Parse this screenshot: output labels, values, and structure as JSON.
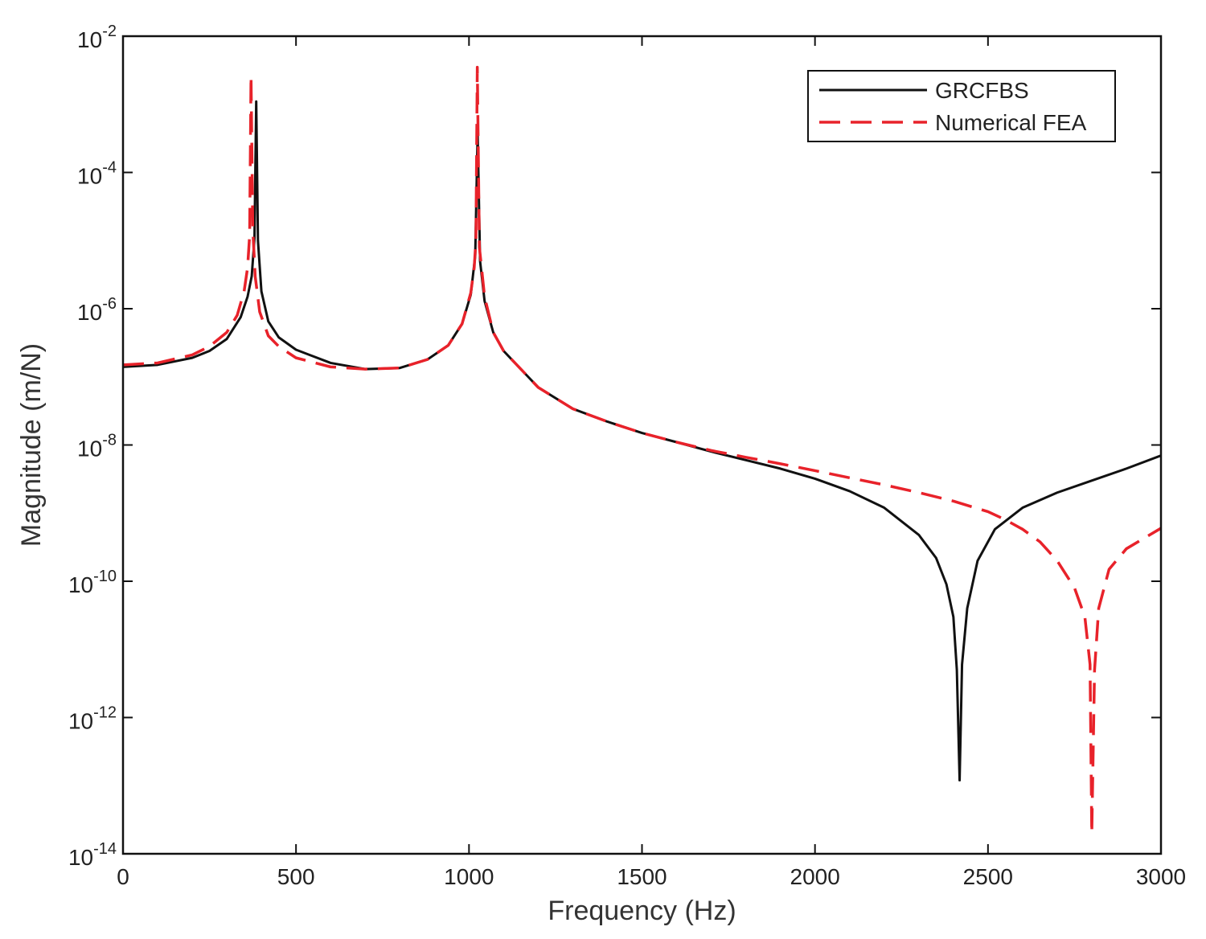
{
  "chart_data": {
    "type": "line",
    "xlabel": "Frequency (Hz)",
    "ylabel": "Magnitude (m/N)",
    "xlim": [
      0,
      3000
    ],
    "ylim": [
      1e-14,
      0.01
    ],
    "y_scale": "log",
    "grid": false,
    "legend_position": "top-right",
    "x_ticks": [
      {
        "value": 0,
        "label": "0"
      },
      {
        "value": 500,
        "label": "500"
      },
      {
        "value": 1000,
        "label": "1000"
      },
      {
        "value": 1500,
        "label": "1500"
      },
      {
        "value": 2000,
        "label": "2000"
      },
      {
        "value": 2500,
        "label": "2500"
      },
      {
        "value": 3000,
        "label": "3000"
      }
    ],
    "y_ticks": [
      {
        "value": 0.01,
        "base": "10",
        "exp": "-2"
      },
      {
        "value": 0.0001,
        "base": "10",
        "exp": "-4"
      },
      {
        "value": 1e-06,
        "base": "10",
        "exp": "-6"
      },
      {
        "value": 1e-08,
        "base": "10",
        "exp": "-8"
      },
      {
        "value": 1e-10,
        "base": "10",
        "exp": "-10"
      },
      {
        "value": 1e-12,
        "base": "10",
        "exp": "-12"
      },
      {
        "value": 1e-14,
        "base": "10",
        "exp": "-14"
      }
    ],
    "series": [
      {
        "name": "GRCFBS",
        "color": "#111111",
        "dash": "solid",
        "x": [
          0,
          100,
          200,
          250,
          300,
          340,
          360,
          372,
          380,
          385,
          390,
          400,
          420,
          450,
          500,
          600,
          700,
          800,
          880,
          940,
          980,
          1005,
          1018,
          1025,
          1032,
          1045,
          1070,
          1100,
          1200,
          1300,
          1400,
          1500,
          1600,
          1700,
          1800,
          1900,
          2000,
          2100,
          2200,
          2300,
          2350,
          2380,
          2400,
          2410,
          2418,
          2425,
          2440,
          2470,
          2520,
          2600,
          2700,
          2800,
          2900,
          3000
        ],
        "y": [
          1.4e-07,
          1.5e-07,
          1.9e-07,
          2.4e-07,
          3.6e-07,
          7.5e-07,
          1.5e-06,
          3e-06,
          1.1e-05,
          0.0011,
          1e-05,
          1.8e-06,
          6.5e-07,
          3.8e-07,
          2.5e-07,
          1.6e-07,
          1.3e-07,
          1.35e-07,
          1.8e-07,
          2.9e-07,
          6e-07,
          1.6e-06,
          6e-06,
          0.00038,
          5e-06,
          1.3e-06,
          4.5e-07,
          2.4e-07,
          7e-08,
          3.4e-08,
          2.2e-08,
          1.5e-08,
          1.1e-08,
          8e-09,
          6e-09,
          4.5e-09,
          3.2e-09,
          2.1e-09,
          1.2e-09,
          4.8e-10,
          2.2e-10,
          9e-11,
          3e-11,
          5e-12,
          1.2e-13,
          6e-12,
          4e-11,
          2e-10,
          5.8e-10,
          1.2e-09,
          2e-09,
          3e-09,
          4.5e-09,
          7e-09
        ]
      },
      {
        "name": "Numerical FEA",
        "color": "#e8222a",
        "dash": "dashed",
        "x": [
          0,
          100,
          200,
          250,
          300,
          330,
          350,
          360,
          366,
          370,
          375,
          382,
          395,
          420,
          450,
          500,
          600,
          700,
          800,
          880,
          940,
          980,
          1005,
          1015,
          1020,
          1024,
          1030,
          1045,
          1070,
          1100,
          1200,
          1300,
          1400,
          1500,
          1600,
          1700,
          1800,
          1900,
          2000,
          2100,
          2200,
          2300,
          2400,
          2500,
          2550,
          2600,
          2650,
          2700,
          2750,
          2780,
          2795,
          2800,
          2808,
          2820,
          2850,
          2900,
          3000
        ],
        "y": [
          1.5e-07,
          1.6e-07,
          2.1e-07,
          2.8e-07,
          4.5e-07,
          8e-07,
          1.8e-06,
          4e-06,
          1.2e-05,
          0.0026,
          1.5e-05,
          3e-06,
          9e-07,
          4e-07,
          2.8e-07,
          1.9e-07,
          1.4e-07,
          1.3e-07,
          1.35e-07,
          1.8e-07,
          2.9e-07,
          6e-07,
          1.7e-06,
          4e-06,
          1e-05,
          0.0035,
          8e-06,
          1.5e-06,
          4.5e-07,
          2.4e-07,
          7e-08,
          3.4e-08,
          2.2e-08,
          1.5e-08,
          1.1e-08,
          8.3e-09,
          6.6e-09,
          5.3e-09,
          4.2e-09,
          3.3e-09,
          2.6e-09,
          2e-09,
          1.5e-09,
          1.05e-09,
          8e-10,
          5.8e-10,
          3.8e-10,
          2e-10,
          8e-11,
          3e-11,
          6e-12,
          2e-14,
          5e-12,
          4e-11,
          1.5e-10,
          3e-10,
          6e-10
        ]
      }
    ]
  }
}
